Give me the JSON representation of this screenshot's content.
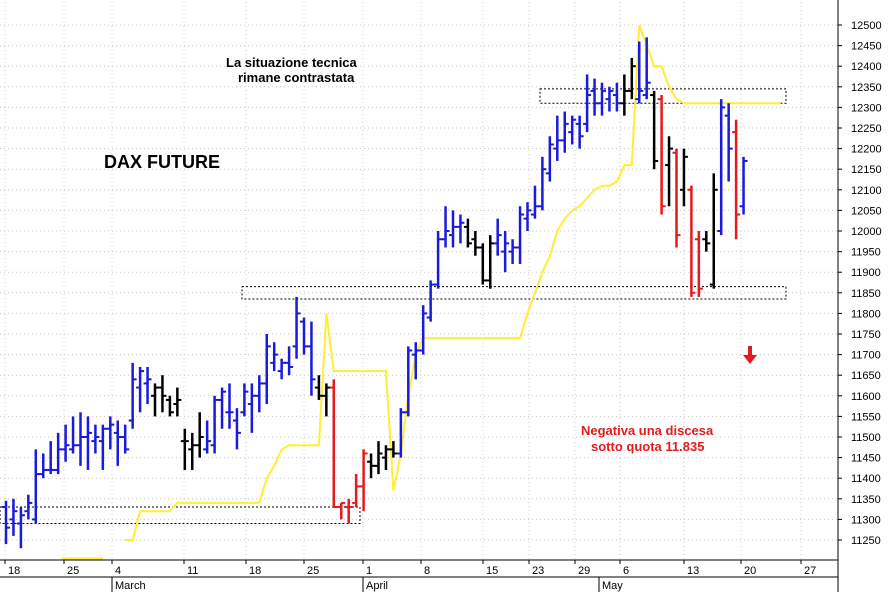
{
  "chart_data": {
    "type": "ohlc-bar",
    "title": "DAX FUTURE",
    "annotations": [
      "La situazione tecnica",
      "rimane contrastata",
      "Negativa una discesa",
      "sotto quota 11.835"
    ],
    "ylim": [
      11200,
      12520
    ],
    "y_ticks": [
      11250,
      11300,
      11350,
      11400,
      11450,
      11500,
      11550,
      11600,
      11650,
      11700,
      11750,
      11800,
      11850,
      11900,
      11950,
      12000,
      12050,
      12100,
      12150,
      12200,
      12250,
      12300,
      12350,
      12400,
      12450,
      12500
    ],
    "x_tick_labels": [
      "18",
      "25",
      "4",
      "11",
      "18",
      "25",
      "1",
      "8",
      "15",
      "23",
      "29",
      "6",
      "13",
      "20",
      "27"
    ],
    "month_labels": [
      "March",
      "April",
      "May"
    ],
    "gridlines": "dotted",
    "colors": {
      "up": "#1a1adf",
      "down": "#e41a1c",
      "neutral": "#000000",
      "line": "#ffee33"
    },
    "bars": [
      {
        "h": 11345,
        "l": 11240,
        "o": 11330,
        "c": 11280,
        "col": "up"
      },
      {
        "h": 11350,
        "l": 11260,
        "o": 11300,
        "c": 11320,
        "col": "up"
      },
      {
        "h": 11330,
        "l": 11230,
        "o": 11290,
        "c": 11310,
        "col": "up"
      },
      {
        "h": 11360,
        "l": 11300,
        "o": 11320,
        "c": 11340,
        "col": "up"
      },
      {
        "h": 11470,
        "l": 11290,
        "o": 11300,
        "c": 11410,
        "col": "up"
      },
      {
        "h": 11460,
        "l": 11400,
        "o": 11410,
        "c": 11420,
        "col": "up"
      },
      {
        "h": 11490,
        "l": 11410,
        "o": 11420,
        "c": 11420,
        "col": "up"
      },
      {
        "h": 11510,
        "l": 11410,
        "o": 11420,
        "c": 11470,
        "col": "up"
      },
      {
        "h": 11530,
        "l": 11440,
        "o": 11470,
        "c": 11480,
        "col": "up"
      },
      {
        "h": 11550,
        "l": 11460,
        "o": 11470,
        "c": 11480,
        "col": "up"
      },
      {
        "h": 11560,
        "l": 11430,
        "o": 11480,
        "c": 11500,
        "col": "up"
      },
      {
        "h": 11550,
        "l": 11420,
        "o": 11500,
        "c": 11510,
        "col": "up"
      },
      {
        "h": 11530,
        "l": 11460,
        "o": 11490,
        "c": 11500,
        "col": "up"
      },
      {
        "h": 11530,
        "l": 11420,
        "o": 11490,
        "c": 11520,
        "col": "up"
      },
      {
        "h": 11550,
        "l": 11470,
        "o": 11520,
        "c": 11530,
        "col": "up"
      },
      {
        "h": 11540,
        "l": 11430,
        "o": 11510,
        "c": 11500,
        "col": "up"
      },
      {
        "h": 11530,
        "l": 11460,
        "o": 11500,
        "c": 11470,
        "col": "up"
      },
      {
        "h": 11680,
        "l": 11520,
        "o": 11540,
        "c": 11640,
        "col": "up"
      },
      {
        "h": 11670,
        "l": 11560,
        "o": 11620,
        "c": 11660,
        "col": "up"
      },
      {
        "h": 11670,
        "l": 11580,
        "o": 11630,
        "c": 11640,
        "col": "up"
      },
      {
        "h": 11630,
        "l": 11550,
        "o": 11600,
        "c": 11620,
        "col": "neutral"
      },
      {
        "h": 11650,
        "l": 11560,
        "o": 11620,
        "c": 11600,
        "col": "neutral"
      },
      {
        "h": 11600,
        "l": 11550,
        "o": 11590,
        "c": 11560,
        "col": "neutral"
      },
      {
        "h": 11620,
        "l": 11550,
        "o": 11580,
        "c": 11590,
        "col": "neutral"
      },
      {
        "h": 11520,
        "l": 11420,
        "o": 11490,
        "c": 11490,
        "col": "neutral"
      },
      {
        "h": 11510,
        "l": 11420,
        "o": 11470,
        "c": 11480,
        "col": "neutral"
      },
      {
        "h": 11560,
        "l": 11450,
        "o": 11480,
        "c": 11500,
        "col": "neutral"
      },
      {
        "h": 11540,
        "l": 11460,
        "o": 11470,
        "c": 11490,
        "col": "up"
      },
      {
        "h": 11600,
        "l": 11460,
        "o": 11480,
        "c": 11590,
        "col": "up"
      },
      {
        "h": 11620,
        "l": 11520,
        "o": 11590,
        "c": 11610,
        "col": "up"
      },
      {
        "h": 11630,
        "l": 11520,
        "o": 11560,
        "c": 11560,
        "col": "up"
      },
      {
        "h": 11570,
        "l": 11470,
        "o": 11540,
        "c": 11510,
        "col": "up"
      },
      {
        "h": 11630,
        "l": 11550,
        "o": 11560,
        "c": 11610,
        "col": "up"
      },
      {
        "h": 11630,
        "l": 11510,
        "o": 11580,
        "c": 11600,
        "col": "up"
      },
      {
        "h": 11650,
        "l": 11560,
        "o": 11600,
        "c": 11630,
        "col": "up"
      },
      {
        "h": 11750,
        "l": 11580,
        "o": 11630,
        "c": 11720,
        "col": "up"
      },
      {
        "h": 11730,
        "l": 11660,
        "o": 11680,
        "c": 11700,
        "col": "up"
      },
      {
        "h": 11690,
        "l": 11640,
        "o": 11660,
        "c": 11680,
        "col": "up"
      },
      {
        "h": 11720,
        "l": 11650,
        "o": 11680,
        "c": 11670,
        "col": "up"
      },
      {
        "h": 11840,
        "l": 11690,
        "o": 11720,
        "c": 11800,
        "col": "up"
      },
      {
        "h": 11790,
        "l": 11700,
        "o": 11780,
        "c": 11720,
        "col": "up"
      },
      {
        "h": 11780,
        "l": 11600,
        "o": 11720,
        "c": 11640,
        "col": "up"
      },
      {
        "h": 11650,
        "l": 11590,
        "o": 11620,
        "c": 11600,
        "col": "neutral"
      },
      {
        "h": 11630,
        "l": 11550,
        "o": 11600,
        "c": 11620,
        "col": "neutral"
      },
      {
        "h": 11640,
        "l": 11330,
        "o": 11620,
        "c": 11330,
        "col": "down"
      },
      {
        "h": 11340,
        "l": 11300,
        "o": 11330,
        "c": 11340,
        "col": "down"
      },
      {
        "h": 11350,
        "l": 11290,
        "o": 11330,
        "c": 11330,
        "col": "down"
      },
      {
        "h": 11410,
        "l": 11330,
        "o": 11340,
        "c": 11380,
        "col": "down"
      },
      {
        "h": 11470,
        "l": 11320,
        "o": 11380,
        "c": 11460,
        "col": "down"
      },
      {
        "h": 11460,
        "l": 11400,
        "o": 11440,
        "c": 11430,
        "col": "neutral"
      },
      {
        "h": 11490,
        "l": 11410,
        "o": 11430,
        "c": 11460,
        "col": "neutral"
      },
      {
        "h": 11480,
        "l": 11420,
        "o": 11450,
        "c": 11470,
        "col": "neutral"
      },
      {
        "h": 11490,
        "l": 11450,
        "o": 11470,
        "c": 11460,
        "col": "neutral"
      },
      {
        "h": 11570,
        "l": 11450,
        "o": 11460,
        "c": 11560,
        "col": "up"
      },
      {
        "h": 11720,
        "l": 11550,
        "o": 11560,
        "c": 11710,
        "col": "up"
      },
      {
        "h": 11730,
        "l": 11640,
        "o": 11700,
        "c": 11710,
        "col": "up"
      },
      {
        "h": 11820,
        "l": 11700,
        "o": 11710,
        "c": 11800,
        "col": "up"
      },
      {
        "h": 11880,
        "l": 11780,
        "o": 11790,
        "c": 11870,
        "col": "up"
      },
      {
        "h": 12000,
        "l": 11860,
        "o": 11870,
        "c": 11980,
        "col": "up"
      },
      {
        "h": 12060,
        "l": 11960,
        "o": 11980,
        "c": 12000,
        "col": "up"
      },
      {
        "h": 12050,
        "l": 11960,
        "o": 11990,
        "c": 12010,
        "col": "up"
      },
      {
        "h": 12040,
        "l": 11970,
        "o": 12010,
        "c": 12020,
        "col": "up"
      },
      {
        "h": 12030,
        "l": 11960,
        "o": 12010,
        "c": 11970,
        "col": "neutral"
      },
      {
        "h": 12000,
        "l": 11940,
        "o": 11980,
        "c": 11960,
        "col": "neutral"
      },
      {
        "h": 11970,
        "l": 11870,
        "o": 11960,
        "c": 11880,
        "col": "neutral"
      },
      {
        "h": 11990,
        "l": 11860,
        "o": 11880,
        "c": 11970,
        "col": "neutral"
      },
      {
        "h": 12030,
        "l": 11940,
        "o": 11970,
        "c": 11990,
        "col": "up"
      },
      {
        "h": 12000,
        "l": 11900,
        "o": 11950,
        "c": 11970,
        "col": "up"
      },
      {
        "h": 11980,
        "l": 11920,
        "o": 11950,
        "c": 11960,
        "col": "up"
      },
      {
        "h": 12060,
        "l": 11920,
        "o": 11960,
        "c": 12040,
        "col": "up"
      },
      {
        "h": 12070,
        "l": 12000,
        "o": 12030,
        "c": 12050,
        "col": "up"
      },
      {
        "h": 12110,
        "l": 12030,
        "o": 12040,
        "c": 12060,
        "col": "up"
      },
      {
        "h": 12180,
        "l": 12050,
        "o": 12060,
        "c": 12150,
        "col": "up"
      },
      {
        "h": 12230,
        "l": 12120,
        "o": 12140,
        "c": 12210,
        "col": "up"
      },
      {
        "h": 12280,
        "l": 12170,
        "o": 12200,
        "c": 12220,
        "col": "up"
      },
      {
        "h": 12290,
        "l": 12190,
        "o": 12220,
        "c": 12260,
        "col": "up"
      },
      {
        "h": 12280,
        "l": 12210,
        "o": 12240,
        "c": 12270,
        "col": "up"
      },
      {
        "h": 12280,
        "l": 12200,
        "o": 12260,
        "c": 12230,
        "col": "up"
      },
      {
        "h": 12380,
        "l": 12240,
        "o": 12260,
        "c": 12330,
        "col": "up"
      },
      {
        "h": 12370,
        "l": 12280,
        "o": 12340,
        "c": 12310,
        "col": "up"
      },
      {
        "h": 12360,
        "l": 12280,
        "o": 12310,
        "c": 12340,
        "col": "up"
      },
      {
        "h": 12350,
        "l": 12290,
        "o": 12320,
        "c": 12340,
        "col": "up"
      },
      {
        "h": 12360,
        "l": 12290,
        "o": 12330,
        "c": 12310,
        "col": "up"
      },
      {
        "h": 12380,
        "l": 12280,
        "o": 12310,
        "c": 12340,
        "col": "neutral"
      },
      {
        "h": 12420,
        "l": 12320,
        "o": 12340,
        "c": 12400,
        "col": "neutral"
      },
      {
        "h": 12460,
        "l": 12310,
        "o": 12320,
        "c": 12340,
        "col": "up"
      },
      {
        "h": 12470,
        "l": 12320,
        "o": 12330,
        "c": 12360,
        "col": "up"
      },
      {
        "h": 12340,
        "l": 12150,
        "o": 12330,
        "c": 12170,
        "col": "neutral"
      },
      {
        "h": 12330,
        "l": 12040,
        "o": 12320,
        "c": 12060,
        "col": "down"
      },
      {
        "h": 12230,
        "l": 12060,
        "o": 12160,
        "c": 12200,
        "col": "neutral"
      },
      {
        "h": 12200,
        "l": 11960,
        "o": 12190,
        "c": 11990,
        "col": "down"
      },
      {
        "h": 12200,
        "l": 12060,
        "o": 12100,
        "c": 12180,
        "col": "neutral"
      },
      {
        "h": 12110,
        "l": 11840,
        "o": 12100,
        "c": 11850,
        "col": "down"
      },
      {
        "h": 12000,
        "l": 11840,
        "o": 11980,
        "c": 11860,
        "col": "down"
      },
      {
        "h": 12000,
        "l": 11950,
        "o": 11980,
        "c": 11970,
        "col": "neutral"
      },
      {
        "h": 12140,
        "l": 11860,
        "o": 11870,
        "c": 12100,
        "col": "neutral"
      },
      {
        "h": 12320,
        "l": 11990,
        "o": 12000,
        "c": 12300,
        "col": "up"
      },
      {
        "h": 12310,
        "l": 12120,
        "o": 12280,
        "c": 12200,
        "col": "up"
      },
      {
        "h": 12270,
        "l": 11980,
        "o": 12240,
        "c": 12040,
        "col": "down"
      },
      {
        "h": 12180,
        "l": 12040,
        "o": 12060,
        "c": 12170,
        "col": "up"
      }
    ],
    "line_series": [
      11200,
      11200,
      11200,
      11200,
      11200,
      11200,
      11200,
      11200,
      11200,
      11200,
      11200,
      11200,
      11200,
      11200,
      11200,
      11200,
      11250,
      11250,
      11320,
      11320,
      11320,
      11320,
      11320,
      11340,
      11340,
      11340,
      11340,
      11340,
      11340,
      11340,
      11340,
      11340,
      11340,
      11340,
      11340,
      11400,
      11430,
      11470,
      11480,
      11480,
      11480,
      11480,
      11480,
      11800,
      11660,
      11660,
      11660,
      11660,
      11660,
      11660,
      11660,
      11660,
      11370,
      11460,
      11600,
      11700,
      11740,
      11740,
      11740,
      11740,
      11740,
      11740,
      11740,
      11740,
      11740,
      11740,
      11740,
      11740,
      11740,
      11740,
      11800,
      11850,
      11900,
      11940,
      12000,
      12030,
      12050,
      12060,
      12080,
      12100,
      12110,
      12110,
      12120,
      12160,
      12160,
      12500,
      12450,
      12400,
      12400,
      12350,
      12320,
      12310,
      12310,
      12310,
      12310,
      12310,
      12310,
      12310,
      12310,
      12310,
      12310,
      12310,
      12310,
      12310,
      12310
    ]
  }
}
